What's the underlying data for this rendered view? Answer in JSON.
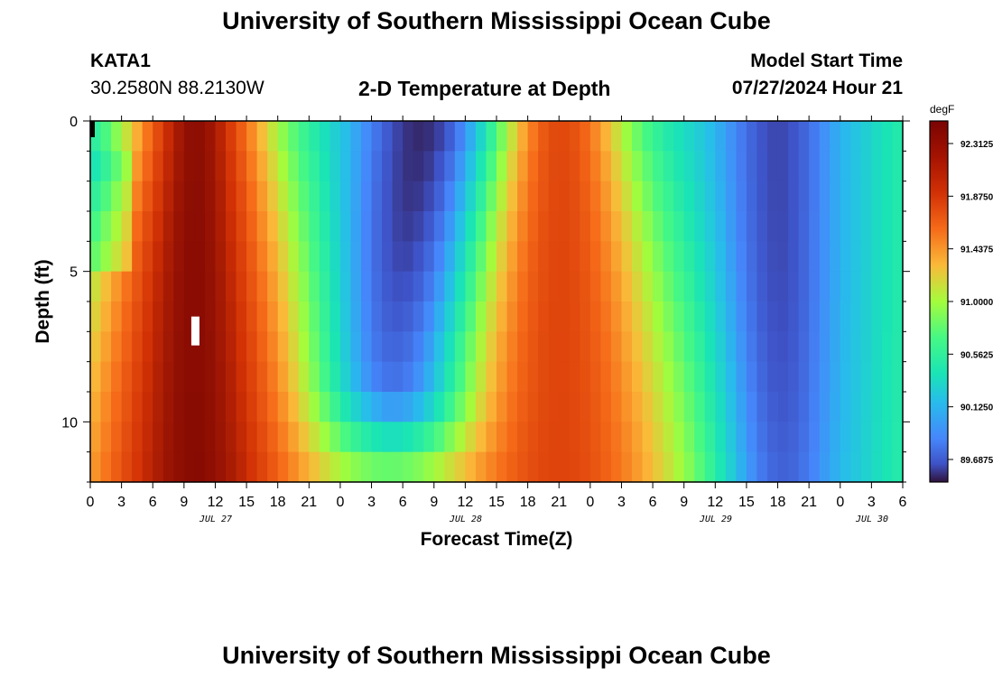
{
  "page": {
    "title": "University of Southern Mississippi Ocean Cube",
    "footer_title": "University of Southern Mississippi Ocean Cube"
  },
  "station": {
    "id": "KATA1",
    "coords": "30.2580N  88.2130W"
  },
  "model": {
    "label": "Model Start Time",
    "start": "07/27/2024 Hour 21"
  },
  "chart_data": {
    "type": "heatmap",
    "title": "2-D Temperature at Depth",
    "xlabel": "Forecast Time(Z)",
    "ylabel": "Depth (ft)",
    "units": "degF",
    "x_range_hours": [
      0,
      78
    ],
    "y_range_ft": [
      0,
      12
    ],
    "y_inverted": true,
    "x_ticks": [
      "0",
      "3",
      "6",
      "9",
      "12",
      "15",
      "18",
      "21",
      "0",
      "3",
      "6",
      "9",
      "12",
      "15",
      "18",
      "21",
      "0",
      "3",
      "6",
      "9",
      "12",
      "15",
      "18",
      "21",
      "0",
      "3",
      "6"
    ],
    "y_ticks": [
      "0",
      "5",
      "10"
    ],
    "date_labels": [
      "JUL 27",
      "JUL 28",
      "JUL 29",
      "JUL 30"
    ],
    "colorbar_ticks": [
      "92.3125",
      "91.8750",
      "91.4375",
      "91.0000",
      "90.5625",
      "90.1250",
      "89.6875"
    ],
    "colorbar_range": [
      89.5,
      92.5
    ],
    "warm_peaks": [
      {
        "time_h": 10,
        "depth_ft": 6.5,
        "value": 92.45
      },
      {
        "time_h": 45,
        "depth_ft": 11,
        "value": 92.1
      }
    ],
    "cold_troughs": [
      {
        "time_h": 31,
        "depth_ft": 2,
        "value": 89.65
      },
      {
        "time_h": 66,
        "depth_ft": 6,
        "value": 89.8
      }
    ]
  }
}
